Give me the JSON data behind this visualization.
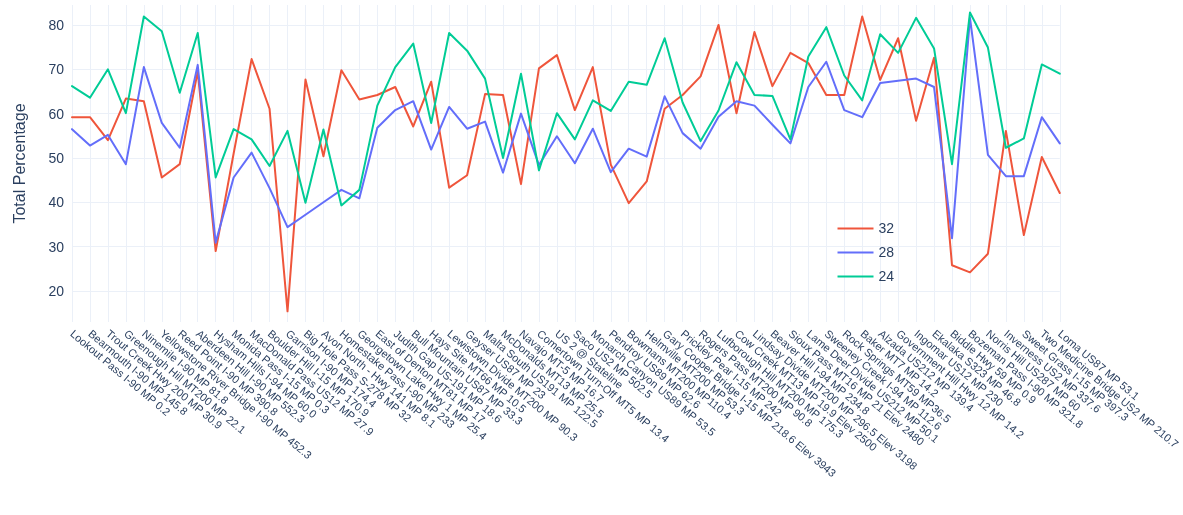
{
  "chart_data": {
    "type": "line",
    "ylabel": "Total Percentage",
    "categories": [
      "Lookout Pass I-90 MP 0.2",
      "Bearmouth I-90 MP 145.8",
      "Trout Creek Hwy 200 MP 30.9",
      "Greenough Hill MT200 MP 22.1",
      "Ninemile I-90 MP 81.8",
      "Yellowstone River Bridge I-90 MP 452.3",
      "Reed Point I-90 MP 390.8",
      "Aberdeen Hill I-90 MP 552.3",
      "Hysham Hills I-94 MP 60.0",
      "Monida Pass I-15 MP 0.3",
      "MacDonald Pass US12 MP 27.9",
      "Boulder Hill I-15 MP 170.9",
      "Garrison I-90 MP 174.4",
      "Big Hole Pass S-278 MP 32",
      "Avon North - Hwy 141 MP 8.1",
      "Homestake Pass I-90 MP 233",
      "Georgetown Lake Hwy 1 MP 25.4",
      "East of Denton MT81 MP 17",
      "Judith Gap US-191 MP 18.6",
      "Bull Mountain US87 MP 33.3",
      "Hays Site MT66 MP 10.5",
      "Lewistown Divide MT200 MP 90.3",
      "Geyser US87 MP 23",
      "Malta South US191 MP 122.5",
      "McDonalds MT13 MP 25.5",
      "Navajo MT-5 MP 16.7",
      "Comertown Turn-Off MT5 MP 13.4",
      "US 2 @ Stateline",
      "Saco US2 MP 502.5",
      "Monarch Canyon US89 MP 53.5",
      "Pendroy US89 MP 62.6",
      "Bowmans MT200 MP110.4",
      "Helmville MT200 MP 53.3",
      "Gary Cooper Bridge I-15 MP 218.6 Elev 3943",
      "Prickley Pear I-15 MP 242",
      "Rogers Pass MT200 MP 90.8",
      "Lufborough Hill MT200 MP 175.3",
      "Cow Creek MT13 MP 19.9 Elev 2500",
      "Lindsay Divide MT200 MP 296.5 Elev 3198",
      "Beaver Hill I-94 MP 234.8",
      "Sioux Pass MT16 MP 21 Elev 2480",
      "Lame Deer Divide US212 MP 50.1",
      "Sweeney Creek I-94 MP 112.6",
      "Rock Springs MT59 MP36.5",
      "Baker MT7 MP 14.2",
      "Alzada US212 MP 139.4",
      "Government Hill Hwy 12 MP 14.2",
      "Ingomar US12 MP 230",
      "Ekalaka S323 MP 46.8",
      "Biddle Hwy 59 MP 0.9",
      "Bozeman Pass I-90 MP 321.8",
      "Norris Hill US287 MP 60",
      "Inverness US2 MP 337.6",
      "Sweet Grass I-15 MP 397.3",
      "Two Medicine Bridge US2 MP 210.7",
      "Loma US87 MP 53.1"
    ],
    "series": [
      {
        "name": "32",
        "color": "#ef553b",
        "values": [
          59.2,
          59.2,
          54.0,
          63.4,
          62.8,
          45.6,
          48.6,
          69.5,
          29.0,
          51,
          72.3,
          61.1,
          15.4,
          67.7,
          50.4,
          69.8,
          63.2,
          64.2,
          66.0,
          57.1,
          67.2,
          43.3,
          46.1,
          64.4,
          64.2,
          44.1,
          70.2,
          73.2,
          60.8,
          70.5,
          48.5,
          39.8,
          44.7,
          61.1,
          64.2,
          68.4,
          80.0,
          60.1,
          78.4,
          66.2,
          73.7,
          71.4,
          64.2,
          64.2,
          81.9,
          67.6,
          77.0,
          58.4,
          72.6,
          25.8,
          24.2,
          28.4,
          56.1,
          32.6,
          50.2,
          42.1
        ]
      },
      {
        "name": "28",
        "color": "#636efa",
        "values": [
          56.5,
          52.8,
          55.2,
          48.6,
          70.5,
          57.9,
          52.3,
          71.0,
          30.9,
          45.6,
          51.2,
          43.2,
          34.4,
          37.2,
          40.0,
          42.8,
          40.9,
          56.8,
          60.8,
          62.8,
          51.9,
          61.5,
          56.6,
          58.2,
          46.7,
          60.0,
          48.4,
          54.9,
          48.8,
          56.6,
          46.8,
          52.1,
          50.3,
          63.9,
          55.6,
          52.1,
          59.3,
          62.8,
          61.8,
          57.5,
          53.3,
          66.0,
          71.7,
          60.8,
          59.2,
          66.9,
          67.4,
          67.9,
          66.0,
          31.9,
          81.6,
          50.7,
          45.9,
          45.9,
          59.2,
          53.3
        ]
      },
      {
        "name": "24",
        "color": "#00cc96",
        "values": [
          66.2,
          63.6,
          70.0,
          60.1,
          81.9,
          78.6,
          64.7,
          78.2,
          45.6,
          56.5,
          54.2,
          48.2,
          56.1,
          39.9,
          56.4,
          39.3,
          42.8,
          61.8,
          70.5,
          75.8,
          57.9,
          78.2,
          74.2,
          67.9,
          50.0,
          69.0,
          47.2,
          60.1,
          54.2,
          63.0,
          60.6,
          67.2,
          66.5,
          77.0,
          62.5,
          53.8,
          60.7,
          71.6,
          64.2,
          64.0,
          54.2,
          72.9,
          79.5,
          68.6,
          63.0,
          77.9,
          73.7,
          81.6,
          74.7,
          48.6,
          82.8,
          74.9,
          52.3,
          54.4,
          71.1,
          69.0
        ]
      }
    ],
    "ylim": [
      13,
      84.5
    ],
    "yticks": [
      20,
      30,
      40,
      50,
      60,
      70,
      80
    ],
    "grid": true,
    "legend": "bottom right",
    "line_style": "solid",
    "marker": "none"
  }
}
